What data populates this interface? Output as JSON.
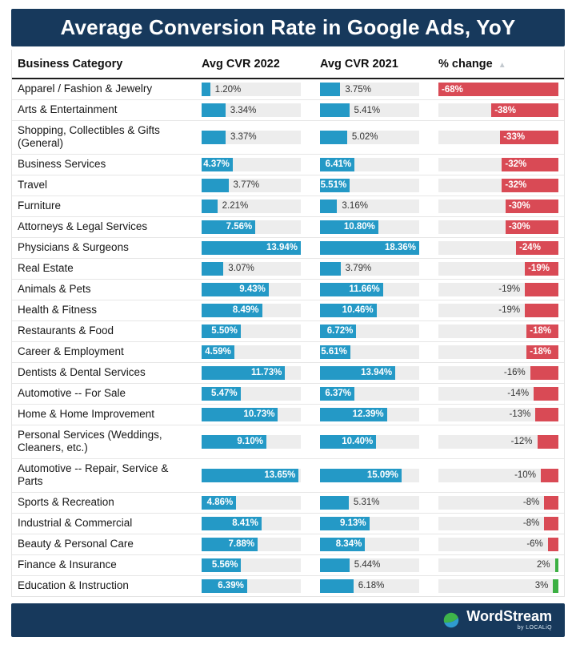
{
  "colors": {
    "navy": "#17395c",
    "blue": "#2499c6",
    "red": "#d94a55",
    "green": "#3cb043",
    "track": "#ededed"
  },
  "header": {
    "title": "Average Conversion Rate in Google Ads, YoY"
  },
  "table": {
    "columns": [
      "Business Category",
      "Avg CVR 2022",
      "Avg CVR 2021",
      "% change"
    ],
    "sort_icon": "▲"
  },
  "footer": {
    "brand": "WordStream",
    "byline": "by LOCALiQ"
  },
  "chart_data": {
    "type": "bar",
    "title": "Average Conversion Rate in Google Ads, YoY",
    "layout": "horizontal bars in table, one column per series; % change bars right-aligned",
    "legend": "none",
    "categories": [
      "Apparel / Fashion & Jewelry",
      "Arts & Entertainment",
      "Shopping, Collectibles & Gifts (General)",
      "Business Services",
      "Travel",
      "Furniture",
      "Attorneys & Legal Services",
      "Physicians & Surgeons",
      "Real Estate",
      "Animals & Pets",
      "Health & Fitness",
      "Restaurants & Food",
      "Career & Employment",
      "Dentists & Dental Services",
      "Automotive -- For Sale",
      "Home & Home Improvement",
      "Personal Services (Weddings, Cleaners, etc.)",
      "Automotive -- Repair, Service & Parts",
      "Sports & Recreation",
      "Industrial & Commercial",
      "Beauty & Personal Care",
      "Finance & Insurance",
      "Education & Instruction"
    ],
    "series": [
      {
        "name": "Avg CVR 2022",
        "unit": "%",
        "values": [
          1.2,
          3.34,
          3.37,
          4.37,
          3.77,
          2.21,
          7.56,
          13.94,
          3.07,
          9.43,
          8.49,
          5.5,
          4.59,
          11.73,
          5.47,
          10.73,
          9.1,
          13.65,
          4.86,
          8.41,
          7.88,
          5.56,
          6.39
        ],
        "labels": [
          "1.20%",
          "3.34%",
          "3.37%",
          "4.37%",
          "3.77%",
          "2.21%",
          "7.56%",
          "13.94%",
          "3.07%",
          "9.43%",
          "8.49%",
          "5.50%",
          "4.59%",
          "11.73%",
          "5.47%",
          "10.73%",
          "9.10%",
          "13.65%",
          "4.86%",
          "8.41%",
          "7.88%",
          "5.56%",
          "6.39%"
        ]
      },
      {
        "name": "Avg CVR 2021",
        "unit": "%",
        "values": [
          3.75,
          5.41,
          5.02,
          6.41,
          5.51,
          3.16,
          10.8,
          18.36,
          3.79,
          11.66,
          10.46,
          6.72,
          5.61,
          13.94,
          6.37,
          12.39,
          10.4,
          15.09,
          5.31,
          9.13,
          8.34,
          5.44,
          6.18
        ],
        "labels": [
          "3.75%",
          "5.41%",
          "5.02%",
          "6.41%",
          "5.51%",
          "3.16%",
          "10.80%",
          "18.36%",
          "3.79%",
          "11.66%",
          "10.46%",
          "6.72%",
          "5.61%",
          "13.94%",
          "6.37%",
          "12.39%",
          "10.40%",
          "15.09%",
          "5.31%",
          "9.13%",
          "8.34%",
          "5.44%",
          "6.18%"
        ]
      },
      {
        "name": "% change",
        "unit": "%",
        "values": [
          -68,
          -38,
          -33,
          -32,
          -32,
          -30,
          -30,
          -24,
          -19,
          -19,
          -19,
          -18,
          -18,
          -16,
          -14,
          -13,
          -12,
          -10,
          -8,
          -8,
          -6,
          2,
          3
        ],
        "labels": [
          "-68%",
          "-38%",
          "-33%",
          "-32%",
          "-32%",
          "-30%",
          "-30%",
          "-24%",
          "-19%",
          "-19%",
          "-19%",
          "-18%",
          "-18%",
          "-16%",
          "-14%",
          "-13%",
          "-12%",
          "-10%",
          "-8%",
          "-8%",
          "-6%",
          "2%",
          "3%"
        ]
      }
    ],
    "axis": {
      "cvr_2022_max": 13.94,
      "cvr_2021_max": 18.36,
      "change_max": 68
    }
  },
  "label_placement": {
    "cvr_2022": [
      "out",
      "out",
      "out",
      "in",
      "out",
      "out",
      "in",
      "in",
      "out",
      "in",
      "in",
      "in",
      "in",
      "in",
      "in",
      "in",
      "in",
      "in",
      "in",
      "in",
      "in",
      "in",
      "in"
    ],
    "cvr_2021": [
      "out",
      "out",
      "out",
      "in",
      "in",
      "out",
      "in",
      "in",
      "out",
      "in",
      "in",
      "in",
      "in",
      "in",
      "in",
      "in",
      "in",
      "in",
      "out",
      "in",
      "in",
      "out",
      "out"
    ],
    "change": [
      "in",
      "in",
      "in",
      "in",
      "in",
      "in",
      "in",
      "in",
      "in",
      "out",
      "out",
      "in",
      "in",
      "out",
      "out",
      "out",
      "out",
      "out",
      "out",
      "out",
      "out",
      "out",
      "out"
    ]
  }
}
